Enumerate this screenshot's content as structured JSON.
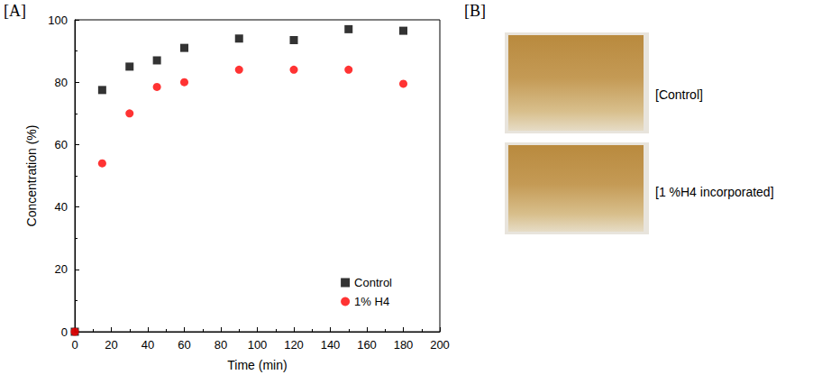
{
  "chart_data": {
    "type": "scatter",
    "x_label": "Time (min)",
    "y_label": "Concentration (%)",
    "x": [
      0,
      15,
      30,
      45,
      60,
      90,
      120,
      150,
      180
    ],
    "series": [
      {
        "name": "Control",
        "color": "#000000",
        "marker": "square",
        "values": [
          0,
          77.5,
          85,
          87,
          91,
          94,
          93.5,
          97,
          96.5
        ]
      },
      {
        "name": "1% H4",
        "color": "#ff0000",
        "marker": "circle",
        "values": [
          0,
          54,
          70,
          78.5,
          80,
          84,
          84,
          84,
          79.5
        ]
      }
    ],
    "xlim": [
      0,
      200
    ],
    "xticks": [
      0,
      20,
      40,
      60,
      80,
      100,
      120,
      140,
      160,
      180,
      200
    ],
    "ylim": [
      0,
      100
    ],
    "yticks": [
      0,
      20,
      40,
      60,
      80,
      100
    ],
    "grid": false,
    "legend": "lower right"
  },
  "panel_labels": [
    "[A]",
    "[B]"
  ],
  "photos": [
    {
      "label": "[Control]"
    },
    {
      "label": "[1 %H4 incorporated]"
    }
  ]
}
